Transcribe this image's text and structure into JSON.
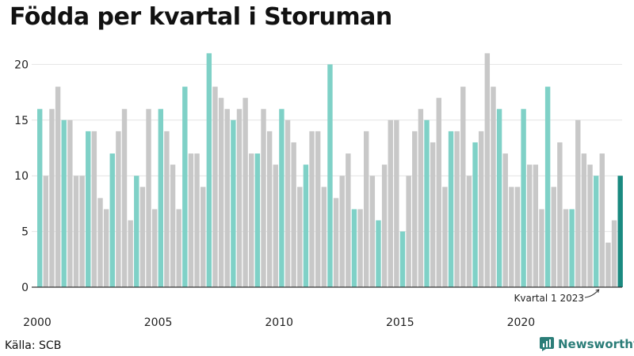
{
  "title": "Födda per kvartal i Storuman",
  "source": "Källa: SCB",
  "brand": {
    "name": "Newsworthy",
    "icon": "newsworthy-logo-icon",
    "color": "#2b7d78"
  },
  "colors": {
    "q1": "#7fd1c7",
    "other": "#c8c8c8",
    "highlight": "#1a8a80",
    "grid": "#e4e4e4",
    "axis": "#333333"
  },
  "chart_data": {
    "type": "bar",
    "title": "Födda per kvartal i Storuman",
    "xlabel": "",
    "ylabel": "",
    "ylim": [
      0,
      22
    ],
    "yticks": [
      0,
      5,
      10,
      15,
      20
    ],
    "start_year": 2000,
    "year_labels": [
      "2000",
      "2005",
      "2010",
      "2015",
      "2020"
    ],
    "grid": true,
    "values": [
      16,
      10,
      16,
      18,
      15,
      15,
      10,
      10,
      14,
      14,
      8,
      7,
      12,
      14,
      16,
      6,
      10,
      9,
      16,
      7,
      16,
      14,
      11,
      7,
      18,
      12,
      12,
      9,
      21,
      18,
      17,
      16,
      15,
      16,
      17,
      12,
      12,
      16,
      14,
      11,
      16,
      15,
      13,
      9,
      11,
      14,
      14,
      9,
      20,
      8,
      10,
      12,
      7,
      7,
      14,
      10,
      6,
      11,
      15,
      15,
      5,
      10,
      14,
      16,
      15,
      13,
      17,
      9,
      14,
      14,
      18,
      10,
      13,
      14,
      21,
      18,
      16,
      12,
      9,
      9,
      16,
      11,
      11,
      7,
      18,
      9,
      13,
      7,
      7,
      15,
      12,
      11,
      10,
      12,
      4,
      6,
      10
    ],
    "annotation": "Kvartal 1 2023"
  }
}
